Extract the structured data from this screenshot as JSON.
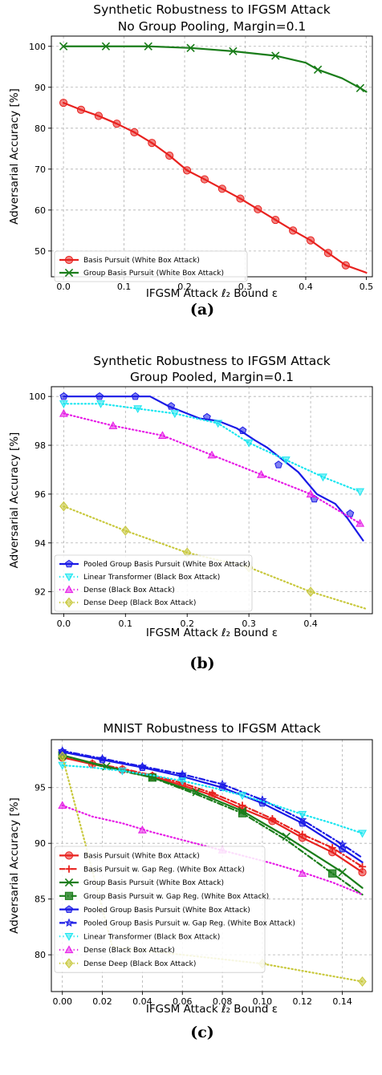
{
  "chart_data": [
    {
      "type": "line",
      "panel_label": "(a)",
      "title": "Synthetic Robustness to IFGSM Attack",
      "subtitle": "No Group Pooling, Margin=0.1",
      "xlabel": "IFGSM Attack ℓ₂ Bound ε",
      "ylabel": "Adversarial Accuracy [%]",
      "xlim": [
        -0.02,
        0.51
      ],
      "ylim": [
        43.7,
        102.5
      ],
      "xticks": [
        "0.0",
        "0.1",
        "0.2",
        "0.3",
        "0.4",
        "0.5"
      ],
      "yticks": [
        "50",
        "60",
        "70",
        "80",
        "90",
        "100"
      ],
      "grid": true,
      "legend_position": "lower-left",
      "series": [
        {
          "name": "Basis Pursuit (White Box Attack)",
          "color": "#e8221f",
          "marker": "circle",
          "dash": "solid",
          "x": [
            0.0,
            0.029,
            0.058,
            0.088,
            0.117,
            0.146,
            0.175,
            0.204,
            0.233,
            0.262,
            0.292,
            0.321,
            0.35,
            0.379,
            0.408,
            0.437,
            0.466,
            0.5
          ],
          "y": [
            86.2,
            84.5,
            83.0,
            81.1,
            79.0,
            76.4,
            73.3,
            69.7,
            67.5,
            65.2,
            62.8,
            60.2,
            57.6,
            55.0,
            52.6,
            49.5,
            46.5,
            44.7
          ],
          "marker_x": [
            0.0,
            0.029,
            0.058,
            0.088,
            0.117,
            0.146,
            0.175,
            0.204,
            0.233,
            0.262,
            0.292,
            0.321,
            0.35,
            0.379,
            0.408,
            0.437,
            0.466
          ],
          "marker_y": [
            86.2,
            84.5,
            83.0,
            81.1,
            79.0,
            76.4,
            73.3,
            69.7,
            67.5,
            65.2,
            62.8,
            60.2,
            57.6,
            55.0,
            52.6,
            49.5,
            46.5
          ]
        },
        {
          "name": "Group Basis Pursuit (White Box Attack)",
          "color": "#1a7d1a",
          "marker": "x",
          "dash": "solid",
          "x": [
            0.0,
            0.07,
            0.14,
            0.21,
            0.28,
            0.35,
            0.4,
            0.42,
            0.46,
            0.49,
            0.5
          ],
          "y": [
            100.0,
            100.0,
            100.0,
            99.6,
            98.8,
            97.7,
            96.0,
            94.3,
            92.2,
            89.8,
            88.9
          ],
          "marker_x": [
            0.0,
            0.07,
            0.14,
            0.21,
            0.28,
            0.35,
            0.42,
            0.49
          ],
          "marker_y": [
            100.0,
            100.0,
            100.0,
            99.6,
            98.8,
            97.7,
            94.3,
            89.8
          ]
        }
      ]
    },
    {
      "type": "line",
      "panel_label": "(b)",
      "title": "Synthetic Robustness to IFGSM Attack",
      "subtitle": "Group Pooled, Margin=0.1",
      "xlabel": "IFGSM Attack ℓ₂ Bound ε",
      "ylabel": "Adversarial Accuracy [%]",
      "xlim": [
        -0.02,
        0.5
      ],
      "ylim": [
        91.1,
        100.4
      ],
      "xticks": [
        "0.0",
        "0.1",
        "0.2",
        "0.3",
        "0.4"
      ],
      "yticks": [
        "92",
        "94",
        "96",
        "98",
        "100"
      ],
      "grid": true,
      "legend_position": "lower-left",
      "series": [
        {
          "name": "Pooled Group Basis Pursuit (White Box Attack)",
          "color": "#1a1ae6",
          "marker": "pentagon",
          "dash": "solid",
          "x": [
            0.0,
            0.03,
            0.06,
            0.1,
            0.14,
            0.17,
            0.2,
            0.22,
            0.25,
            0.28,
            0.31,
            0.33,
            0.35,
            0.38,
            0.41,
            0.44,
            0.46,
            0.485
          ],
          "y": [
            100.0,
            100.0,
            100.0,
            100.0,
            100.0,
            99.6,
            99.3,
            99.1,
            99.0,
            98.7,
            98.2,
            97.9,
            97.5,
            96.9,
            96.0,
            95.6,
            95.0,
            94.1
          ],
          "marker_x": [
            0.0,
            0.058,
            0.116,
            0.174,
            0.232,
            0.29,
            0.348,
            0.406,
            0.464
          ],
          "marker_y": [
            100.0,
            100.0,
            100.0,
            99.6,
            99.15,
            98.6,
            97.2,
            95.8,
            95.2
          ]
        },
        {
          "name": "Linear Transformer (Black Box Attack)",
          "color": "#1ae6f0",
          "marker": "triangle-down",
          "dash": "dotted",
          "x": [
            0.0,
            0.06,
            0.12,
            0.18,
            0.25,
            0.3,
            0.36,
            0.42,
            0.48
          ],
          "y": [
            99.7,
            99.7,
            99.5,
            99.3,
            98.9,
            98.1,
            97.4,
            96.7,
            96.1
          ],
          "marker_x": [
            0.0,
            0.06,
            0.12,
            0.18,
            0.25,
            0.3,
            0.36,
            0.42,
            0.48
          ],
          "marker_y": [
            99.7,
            99.7,
            99.5,
            99.3,
            98.9,
            98.1,
            97.4,
            96.7,
            96.1
          ]
        },
        {
          "name": "Dense (Black Box Attack)",
          "color": "#e61ae6",
          "marker": "triangle-up",
          "dash": "dotted",
          "x": [
            0.0,
            0.08,
            0.16,
            0.24,
            0.32,
            0.4,
            0.48
          ],
          "y": [
            99.3,
            98.8,
            98.4,
            97.6,
            96.8,
            96.0,
            94.8
          ],
          "marker_x": [
            0.0,
            0.08,
            0.16,
            0.24,
            0.32,
            0.4,
            0.48
          ],
          "marker_y": [
            99.3,
            98.8,
            98.4,
            97.6,
            96.8,
            96.0,
            94.8
          ]
        },
        {
          "name": "Dense Deep (Black Box Attack)",
          "color": "#c8c83c",
          "marker": "diamond",
          "dash": "dotted",
          "x": [
            0.0,
            0.1,
            0.2,
            0.3,
            0.4,
            0.49
          ],
          "y": [
            95.5,
            94.5,
            93.6,
            93.0,
            92.0,
            91.3
          ],
          "marker_x": [
            0.0,
            0.1,
            0.2,
            0.3,
            0.4
          ],
          "marker_y": [
            95.5,
            94.5,
            93.6,
            93.0,
            92.0
          ]
        }
      ]
    },
    {
      "type": "line",
      "panel_label": "(c)",
      "title": "MNIST Robustness to IFGSM Attack",
      "xlabel": "IFGSM Attack ℓ₂ Bound ε",
      "ylabel": "Adversarial Accuracy [%]",
      "xlim": [
        -0.0055,
        0.155
      ],
      "ylim": [
        76.7,
        99.3
      ],
      "xticks": [
        "0.00",
        "0.02",
        "0.04",
        "0.06",
        "0.08",
        "0.10",
        "0.12",
        "0.14"
      ],
      "yticks": [
        "80",
        "85",
        "90",
        "95"
      ],
      "grid": true,
      "legend_position": "lower-left",
      "series": [
        {
          "name": "Basis Pursuit (White Box Attack)",
          "color": "#e8221f",
          "marker": "circle",
          "dash": "solid",
          "x": [
            0.0,
            0.015,
            0.03,
            0.045,
            0.06,
            0.075,
            0.09,
            0.105,
            0.12,
            0.135,
            0.15
          ],
          "y": [
            97.7,
            97.1,
            96.6,
            96.0,
            95.2,
            94.3,
            93.1,
            92.0,
            90.5,
            89.2,
            87.4
          ],
          "marker_x": [
            0.0,
            0.015,
            0.03,
            0.045,
            0.06,
            0.075,
            0.09,
            0.105,
            0.12,
            0.135,
            0.15
          ],
          "marker_y": [
            97.7,
            97.1,
            96.6,
            96.0,
            95.2,
            94.3,
            93.1,
            92.0,
            90.5,
            89.2,
            87.4
          ]
        },
        {
          "name": "Basis Pursuit w. Gap Reg. (White Box Attack)",
          "color": "#e8221f",
          "marker": "plus",
          "dash": "dashdot",
          "x": [
            0.0,
            0.015,
            0.03,
            0.045,
            0.06,
            0.075,
            0.09,
            0.105,
            0.12,
            0.135,
            0.15
          ],
          "y": [
            97.7,
            97.2,
            96.7,
            96.1,
            95.4,
            94.5,
            93.4,
            92.2,
            90.8,
            89.6,
            87.9
          ],
          "marker_x": [
            0.0,
            0.015,
            0.03,
            0.045,
            0.06,
            0.075,
            0.09,
            0.105,
            0.12,
            0.135,
            0.15
          ],
          "marker_y": [
            97.7,
            97.2,
            96.7,
            96.1,
            95.4,
            94.5,
            93.4,
            92.2,
            90.8,
            89.6,
            87.9
          ]
        },
        {
          "name": "Group Basis Pursuit (White Box Attack)",
          "color": "#1a7d1a",
          "marker": "x",
          "dash": "solid",
          "x": [
            0.0,
            0.022,
            0.045,
            0.067,
            0.09,
            0.112,
            0.14,
            0.15
          ],
          "y": [
            97.9,
            96.9,
            95.9,
            94.6,
            92.9,
            90.6,
            87.4,
            86.0
          ],
          "marker_x": [
            0.0,
            0.022,
            0.045,
            0.067,
            0.09,
            0.112,
            0.14
          ],
          "marker_y": [
            97.9,
            96.9,
            95.9,
            94.6,
            92.9,
            90.6,
            87.4
          ]
        },
        {
          "name": "Group Basis Pursuit w. Gap Reg. (White Box Attack)",
          "color": "#1a7d1a",
          "marker": "square",
          "dash": "dashdot",
          "x": [
            0.0,
            0.022,
            0.045,
            0.067,
            0.09,
            0.112,
            0.135,
            0.15
          ],
          "y": [
            97.9,
            96.8,
            95.9,
            94.4,
            92.7,
            90.3,
            87.3,
            85.4
          ],
          "marker_x": [
            0.0,
            0.045,
            0.09,
            0.135
          ],
          "marker_y": [
            97.9,
            95.9,
            92.7,
            87.3
          ]
        },
        {
          "name": "Pooled Group Basis Pursuit (White Box Attack)",
          "color": "#1a1ae6",
          "marker": "pentagon",
          "dash": "solid",
          "x": [
            0.0,
            0.02,
            0.04,
            0.06,
            0.08,
            0.1,
            0.12,
            0.14,
            0.15
          ],
          "y": [
            98.2,
            97.5,
            96.8,
            96.0,
            95.0,
            93.6,
            91.8,
            89.5,
            88.3
          ],
          "marker_x": [
            0.0,
            0.02,
            0.04,
            0.06,
            0.08,
            0.1,
            0.12,
            0.14
          ],
          "marker_y": [
            98.2,
            97.5,
            96.8,
            96.0,
            95.0,
            93.6,
            91.8,
            89.5
          ]
        },
        {
          "name": "Pooled Group Basis Pursuit w. Gap Reg. (White Box Attack)",
          "color": "#1a1ae6",
          "marker": "star",
          "dash": "dashdot",
          "x": [
            0.0,
            0.02,
            0.04,
            0.06,
            0.08,
            0.1,
            0.12,
            0.14,
            0.15
          ],
          "y": [
            98.3,
            97.6,
            96.9,
            96.2,
            95.3,
            93.9,
            92.1,
            89.9,
            88.7
          ],
          "marker_x": [
            0.0,
            0.02,
            0.04,
            0.06,
            0.08,
            0.1,
            0.12,
            0.14
          ],
          "marker_y": [
            98.3,
            97.6,
            96.9,
            96.2,
            95.3,
            93.9,
            92.1,
            89.9
          ]
        },
        {
          "name": "Linear Transformer (Black Box Attack)",
          "color": "#1ae6f0",
          "marker": "triangle-down",
          "dash": "dotted",
          "x": [
            0.0,
            0.015,
            0.03,
            0.045,
            0.06,
            0.075,
            0.09,
            0.105,
            0.12,
            0.135,
            0.15
          ],
          "y": [
            97.0,
            96.8,
            96.5,
            96.1,
            95.6,
            95.0,
            94.3,
            93.5,
            92.6,
            91.8,
            90.9
          ],
          "marker_x": [
            0.0,
            0.03,
            0.06,
            0.09,
            0.12,
            0.15
          ],
          "marker_y": [
            97.0,
            96.5,
            95.6,
            94.3,
            92.6,
            90.9
          ]
        },
        {
          "name": "Dense (Black Box Attack)",
          "color": "#e61ae6",
          "marker": "triangle-up",
          "dash": "dotted",
          "x": [
            0.0,
            0.015,
            0.03,
            0.045,
            0.06,
            0.075,
            0.09,
            0.105,
            0.12,
            0.135,
            0.15
          ],
          "y": [
            93.4,
            92.4,
            91.8,
            91.0,
            90.3,
            89.6,
            88.9,
            88.2,
            87.4,
            86.5,
            85.4
          ],
          "marker_x": [
            0.0,
            0.04,
            0.08,
            0.12
          ],
          "marker_y": [
            93.4,
            91.2,
            89.4,
            87.3
          ]
        },
        {
          "name": "Dense Deep (Black Box Attack)",
          "color": "#c8c83c",
          "marker": "diamond",
          "dash": "dotted",
          "x": [
            0.0,
            0.025,
            0.05,
            0.075,
            0.1,
            0.125,
            0.15
          ],
          "y": [
            97.8,
            80.7,
            80.2,
            79.7,
            79.2,
            78.4,
            77.6
          ],
          "marker_x": [
            0.0,
            0.1,
            0.15
          ],
          "marker_y": [
            97.8,
            79.2,
            77.6
          ]
        }
      ]
    }
  ]
}
